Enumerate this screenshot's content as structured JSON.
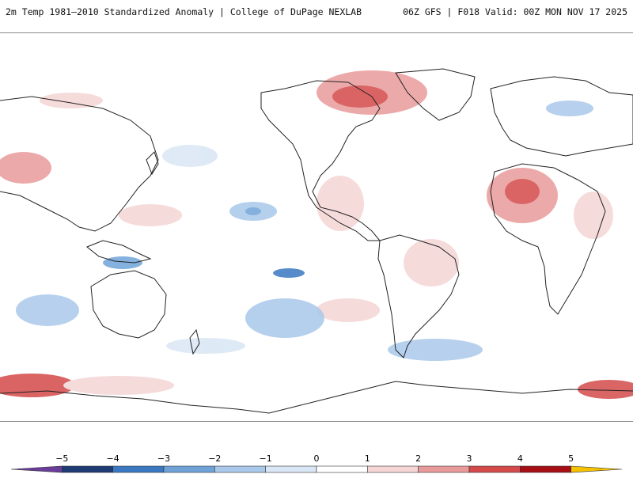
{
  "header": {
    "left": "2m Temp 1981–2010 Standardized Anomaly | College of DuPage NEXLAB",
    "right": "06Z GFS | F018 Valid: 00Z MON NOV 17 2025"
  },
  "map": {
    "ocean_color": "#ffffff",
    "coast_color": "#222222"
  },
  "colorbar": {
    "tick_labels": [
      "−5",
      "−4",
      "−3",
      "−2",
      "−1",
      "0",
      "1",
      "2",
      "3",
      "4",
      "5"
    ],
    "colors": [
      "#6a3d9a",
      "#1f3b73",
      "#3a78c2",
      "#6fa3d8",
      "#a9c8ea",
      "#d9e6f5",
      "#ffffff",
      "#f5d5d5",
      "#e99b9b",
      "#d44a4a",
      "#a50f15",
      "#f5c200"
    ]
  }
}
